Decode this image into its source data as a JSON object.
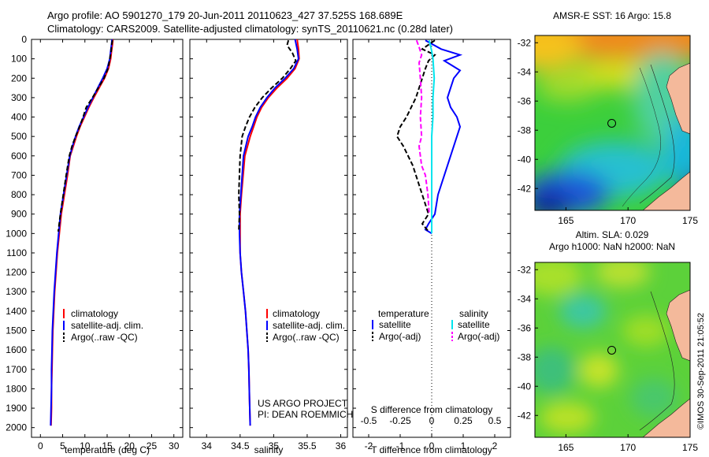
{
  "header": {
    "line1": "Argo profile: AO 5901270_179 20-Jun-2011 20110623_427 37.525S 168.689E",
    "line2": "Climatology: CARS2009. Satellite-adjusted climatology: synTS_20110621.nc (0.28d later)"
  },
  "footer": {
    "timestamp": "©IMOS 30-Sep-2011 21:05:52"
  },
  "colors": {
    "climatology": "#ff0000",
    "satellite": "#0000ff",
    "argo": "#000000",
    "sal_satellite": "#00e5ee",
    "sal_argo": "#ff00ff",
    "land": "#f4b99b"
  },
  "chart_data": [
    {
      "type": "line",
      "name": "temperature-profile",
      "xlabel": "temperature (deg C)",
      "xlim": [
        -2,
        32
      ],
      "ylim": [
        2050,
        0
      ],
      "xticks": [
        "0",
        "5",
        "10",
        "15",
        "20",
        "25",
        "30"
      ],
      "xtick_values": [
        0,
        5,
        10,
        15,
        20,
        25,
        30
      ],
      "yticks": [
        "0",
        "100",
        "200",
        "300",
        "400",
        "500",
        "600",
        "700",
        "800",
        "900",
        "1000",
        "1100",
        "1200",
        "1300",
        "1400",
        "1500",
        "1600",
        "1700",
        "1800",
        "1900",
        "2000"
      ],
      "ytick_values": [
        0,
        100,
        200,
        300,
        400,
        500,
        600,
        700,
        800,
        900,
        1000,
        1100,
        1200,
        1300,
        1400,
        1500,
        1600,
        1700,
        1800,
        1900,
        2000
      ],
      "legend": [
        "climatology",
        "satellite-adj. clim.",
        "Argo(..raw -QC)"
      ],
      "series": [
        {
          "name": "climatology",
          "style": "solid",
          "x": [
            16.3,
            16.2,
            16.0,
            15.8,
            15.3,
            14.4,
            13.2,
            12.0,
            10.9,
            9.9,
            8.9,
            8.1,
            7.4,
            6.7,
            6.1,
            4.7,
            3.8,
            3.2,
            2.8,
            2.7,
            2.6,
            2.5,
            2.5,
            2.4
          ],
          "y": [
            0,
            25,
            60,
            100,
            150,
            200,
            250,
            300,
            350,
            400,
            450,
            500,
            550,
            600,
            700,
            900,
            1100,
            1300,
            1500,
            1600,
            1700,
            1800,
            1900,
            1990
          ]
        },
        {
          "name": "satellite-adj. clim.",
          "style": "solid",
          "x": [
            16.1,
            16.0,
            15.8,
            15.6,
            15.0,
            14.0,
            12.9,
            11.8,
            10.7,
            9.7,
            8.7,
            7.9,
            7.2,
            6.6,
            5.9,
            4.5,
            3.7,
            3.1,
            2.7,
            2.6,
            2.5,
            2.5,
            2.4,
            2.3
          ],
          "y": [
            0,
            25,
            60,
            100,
            150,
            200,
            250,
            300,
            350,
            400,
            450,
            500,
            550,
            600,
            700,
            900,
            1100,
            1300,
            1500,
            1600,
            1700,
            1800,
            1900,
            1990
          ]
        },
        {
          "name": "Argo(..raw -QC)",
          "style": "dashed",
          "x": [
            16.2,
            16.0,
            15.9,
            15.6,
            15.2,
            14.3,
            13.0,
            11.7,
            10.3,
            9.6,
            8.8,
            7.9,
            7.1,
            6.5,
            5.8,
            4.5,
            4.0
          ],
          "y": [
            5,
            30,
            60,
            100,
            150,
            200,
            250,
            300,
            350,
            400,
            450,
            500,
            550,
            600,
            700,
            900,
            990
          ]
        }
      ]
    },
    {
      "type": "line",
      "name": "salinity-profile",
      "xlabel": "salinity",
      "xlim": [
        33.75,
        36.1
      ],
      "ylim": [
        2050,
        0
      ],
      "xticks": [
        "34",
        "34.5",
        "35",
        "35.5",
        "36"
      ],
      "xtick_values": [
        34,
        34.5,
        35,
        35.5,
        36
      ],
      "legend": [
        "climatology",
        "satellite-adj. clim.",
        "Argo(..raw -QC)"
      ],
      "annotation": [
        "US ARGO PROJECT",
        "PI: DEAN ROEMMICH"
      ],
      "series": [
        {
          "name": "climatology",
          "style": "solid",
          "x": [
            35.35,
            35.37,
            35.38,
            35.32,
            35.2,
            35.05,
            34.92,
            34.82,
            34.75,
            34.7,
            34.65,
            34.57,
            34.52,
            34.5,
            34.5,
            34.5,
            34.52,
            34.55,
            34.58,
            34.6,
            34.62,
            34.63,
            34.64,
            34.65
          ],
          "y": [
            0,
            50,
            100,
            150,
            200,
            250,
            300,
            350,
            400,
            450,
            500,
            600,
            800,
            900,
            1000,
            1100,
            1200,
            1300,
            1400,
            1500,
            1600,
            1700,
            1850,
            1990
          ]
        },
        {
          "name": "satellite-adj. clim.",
          "style": "solid",
          "x": [
            35.32,
            35.35,
            35.37,
            35.3,
            35.17,
            35.02,
            34.9,
            34.8,
            34.73,
            34.68,
            34.62,
            34.55,
            34.51,
            34.49,
            34.49,
            34.5,
            34.52,
            34.55,
            34.58,
            34.6,
            34.62,
            34.63,
            34.64,
            34.65
          ],
          "y": [
            0,
            50,
            100,
            150,
            200,
            250,
            300,
            350,
            400,
            450,
            500,
            600,
            800,
            900,
            1000,
            1100,
            1200,
            1300,
            1400,
            1500,
            1600,
            1700,
            1850,
            1990
          ]
        },
        {
          "name": "Argo(..raw -QC)",
          "style": "dashed",
          "x": [
            35.22,
            35.2,
            35.28,
            35.33,
            35.25,
            35.13,
            34.97,
            34.83,
            34.72,
            34.64,
            34.58,
            34.53,
            34.5,
            34.48,
            34.49,
            34.48
          ],
          "y": [
            5,
            30,
            70,
            110,
            150,
            200,
            250,
            300,
            350,
            400,
            450,
            500,
            600,
            800,
            900,
            990
          ]
        }
      ]
    },
    {
      "type": "line",
      "name": "difference-profile",
      "xlabel": "T difference from climatology",
      "xlabel_top": "S difference from climatology",
      "xlim": [
        -2.5,
        2.5
      ],
      "ylim": [
        2050,
        0
      ],
      "xticks": [
        "-2",
        "-1",
        "0",
        "1",
        "2"
      ],
      "xtick_values": [
        -2,
        -1,
        0,
        1,
        2
      ],
      "xticks_top": [
        "-0.5",
        "-0.25",
        "0",
        "0.25",
        "0.5"
      ],
      "xtick_top_values": [
        -0.5,
        -0.25,
        0,
        0.25,
        0.5
      ],
      "zero_line": "dotted",
      "legend_titles": [
        "temperature",
        "salinity"
      ],
      "legend": [
        "satellite",
        "Argo(-adj)",
        "satellite",
        "Argo(-adj)"
      ],
      "series": [
        {
          "name": "temperature satellite",
          "style": "solid",
          "x": [
            -0.2,
            0.3,
            0.9,
            0.4,
            0.6,
            0.9,
            0.7,
            0.6,
            0.5,
            0.6,
            0.8,
            0.9,
            0.8,
            0.6,
            0.4,
            0.2,
            0.1,
            -0.1,
            -0.2,
            0.0
          ],
          "y": [
            5,
            50,
            80,
            110,
            130,
            160,
            200,
            250,
            300,
            350,
            400,
            450,
            500,
            600,
            700,
            800,
            900,
            950,
            980,
            1000
          ]
        },
        {
          "name": "temperature Argo(-adj)",
          "style": "dashed",
          "x": [
            0.1,
            -0.3,
            0.1,
            -0.1,
            -0.2,
            -0.3,
            -0.5,
            -0.8,
            -1.0,
            -1.1,
            -0.9,
            -0.6,
            -0.4,
            -0.2,
            -0.1,
            -0.3,
            -0.1
          ],
          "y": [
            5,
            50,
            80,
            110,
            150,
            200,
            300,
            400,
            450,
            500,
            550,
            650,
            750,
            850,
            900,
            950,
            990
          ]
        },
        {
          "name": "salinity satellite",
          "style": "solid",
          "x": [
            -0.02,
            0.0,
            0.01,
            0.02,
            0.01,
            0.01,
            0.0,
            0.0,
            0.0,
            0.0,
            0.0,
            0.0,
            0.0,
            0.0,
            0.0
          ],
          "y": [
            5,
            60,
            100,
            200,
            300,
            400,
            500,
            600,
            700,
            800,
            900,
            950,
            970,
            990,
            1000
          ]
        },
        {
          "name": "salinity Argo(-adj)",
          "style": "dashed",
          "x": [
            -0.12,
            -0.1,
            -0.08,
            -0.1,
            -0.09,
            -0.08,
            -0.09,
            -0.08,
            -0.1,
            -0.09,
            -0.08,
            -0.05,
            -0.03,
            -0.02
          ],
          "y": [
            5,
            40,
            80,
            120,
            200,
            300,
            400,
            500,
            550,
            600,
            650,
            700,
            800,
            900
          ]
        }
      ]
    },
    {
      "type": "heatmap",
      "name": "sst-map",
      "title": "AMSR-E SST: 16 Argo: 15.8",
      "xlim": [
        162.5,
        175
      ],
      "ylim": [
        -43.5,
        -31.5
      ],
      "xticks": [
        "165",
        "170",
        "175"
      ],
      "xtick_values": [
        165,
        170,
        175
      ],
      "yticks": [
        "-32",
        "-34",
        "-36",
        "-38",
        "-40",
        "-42"
      ],
      "ytick_values": [
        -32,
        -34,
        -36,
        -38,
        -40,
        -42
      ],
      "marker": {
        "lon": 168.689,
        "lat": -37.525
      }
    },
    {
      "type": "heatmap",
      "name": "sla-map",
      "title_lines": [
        "Altim. SLA: 0.029",
        "Argo h1000: NaN h2000: NaN"
      ],
      "xlim": [
        162.5,
        175
      ],
      "ylim": [
        -43.5,
        -31.5
      ],
      "xticks": [
        "165",
        "170",
        "175"
      ],
      "xtick_values": [
        165,
        170,
        175
      ],
      "yticks": [
        "-32",
        "-34",
        "-36",
        "-38",
        "-40",
        "-42"
      ],
      "ytick_values": [
        -32,
        -34,
        -36,
        -38,
        -40,
        -42
      ],
      "marker": {
        "lon": 168.689,
        "lat": -37.525
      }
    }
  ]
}
